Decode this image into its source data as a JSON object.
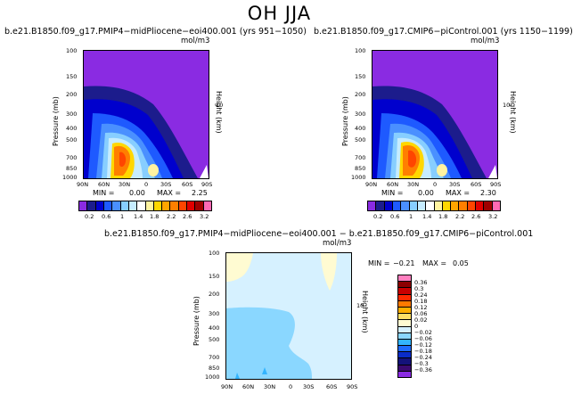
{
  "page": {
    "title": "OH  JJA"
  },
  "chart_data": [
    {
      "type": "contour",
      "title": "b.e21.B1850.f09_g17.PMIP4−midPliocene−eoi400.001  (yrs 951−1050)",
      "units": "mol/m3",
      "ylabel": "Pressure (mb)",
      "ylabel_right": "Height (km)",
      "x_ticks": [
        "90N",
        "60N",
        "30N",
        "0",
        "30S",
        "60S",
        "90S"
      ],
      "y_ticks": [
        "100",
        "150",
        "200",
        "300",
        "400",
        "500",
        "700",
        "850",
        "1000"
      ],
      "right_ticks": [
        "10"
      ],
      "stats": {
        "min_label": "MIN =",
        "min": "0.00",
        "max_label": "MAX =",
        "max": "2.25"
      },
      "colorbar_labels": [
        "0.2",
        "0.6",
        "1",
        "1.4",
        "1.8",
        "2.2",
        "2.6",
        "3.2"
      ]
    },
    {
      "type": "contour",
      "title": "b.e21.B1850.f09_g17.CMIP6−piControl.001  (yrs 1150−1199)",
      "units": "mol/m3",
      "ylabel": "Pressure (mb)",
      "ylabel_right": "Height (km)",
      "x_ticks": [
        "90N",
        "60N",
        "30N",
        "0",
        "30S",
        "60S",
        "90S"
      ],
      "y_ticks": [
        "100",
        "150",
        "200",
        "300",
        "400",
        "500",
        "700",
        "850",
        "1000"
      ],
      "right_ticks": [
        "10"
      ],
      "stats": {
        "min_label": "MIN =",
        "min": "0.00",
        "max_label": "MAX =",
        "max": "2.30"
      },
      "colorbar_labels": [
        "0.2",
        "0.6",
        "1",
        "1.4",
        "1.8",
        "2.2",
        "2.6",
        "3.2"
      ]
    },
    {
      "type": "contour",
      "title": "b.e21.B1850.f09_g17.PMIP4−midPliocene−eoi400.001  −  b.e21.B1850.f09_g17.CMIP6−piControl.001",
      "units": "mol/m3",
      "ylabel": "Pressure (mb)",
      "ylabel_right": "Height (km)",
      "x_ticks": [
        "90N",
        "60N",
        "30N",
        "0",
        "30S",
        "60S",
        "90S"
      ],
      "y_ticks": [
        "100",
        "150",
        "200",
        "300",
        "400",
        "500",
        "700",
        "850",
        "1000"
      ],
      "right_ticks": [
        "10"
      ],
      "stats": {
        "min_label": "MIN =",
        "min": "−0.21",
        "max_label": "MAX =",
        "max": "0.05"
      },
      "colorbar_labels": [
        "0.36",
        "0.3",
        "0.24",
        "0.18",
        "0.12",
        "0.06",
        "0.02",
        "0",
        "−0.02",
        "−0.06",
        "−0.12",
        "−0.18",
        "−0.24",
        "−0.3",
        "−0.36"
      ]
    }
  ],
  "colors": {
    "abs_scale": [
      "#8a2be2",
      "#1c1c8c",
      "#0000cd",
      "#1e5aff",
      "#4a90ff",
      "#87ceff",
      "#c6ecff",
      "#ffffff",
      "#fff3a0",
      "#ffd700",
      "#ffa500",
      "#ff7f00",
      "#ff4500",
      "#e00000",
      "#a00000",
      "#ff69b4"
    ],
    "diff_scale": [
      "#ff7fbf",
      "#8b0000",
      "#c80000",
      "#ff2a00",
      "#ff7a00",
      "#ffb000",
      "#ffe066",
      "#fffbd2",
      "#d6f1ff",
      "#8ad7ff",
      "#33b4ff",
      "#1f6bff",
      "#0a2cc8",
      "#14127a",
      "#3b0a70",
      "#8a2be2"
    ]
  }
}
